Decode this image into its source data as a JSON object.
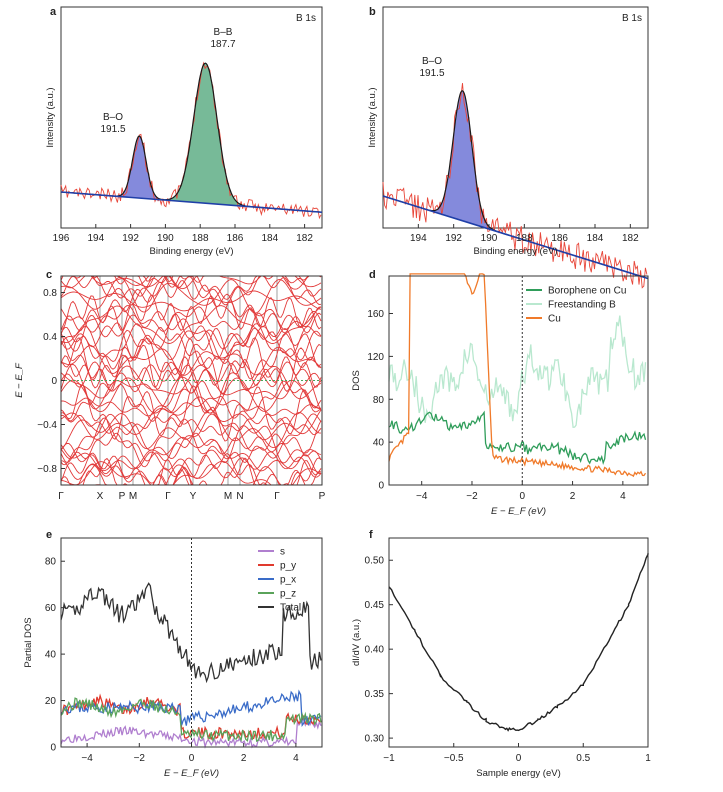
{
  "colors": {
    "raw": "#e8473a",
    "baseline": "#1f3fa8",
    "bo_fill": "#6f76d6",
    "bb_fill": "#5fae86",
    "envelope": "#1a1a1a",
    "borophene": "#2f9d5a",
    "freestanding": "#b9e8cf",
    "cu": "#f07a2a",
    "s_orb": "#b07fcf",
    "px": "#e03a2e",
    "py": "#3a6cc8",
    "pz": "#5aa35a",
    "total": "#333333",
    "band": "#e23a3a"
  },
  "chart_data": [
    {
      "panel": "a",
      "type": "line",
      "title": "B 1s",
      "xlabel": "Binding energy (eV)",
      "ylabel": "Intensity (a.u.)",
      "xlim": [
        196,
        181
      ],
      "xticks": [
        196,
        194,
        192,
        190,
        188,
        186,
        184,
        182
      ],
      "peaks": [
        {
          "name": "B–O",
          "position": 191.5,
          "fill": "bo_fill"
        },
        {
          "name": "B–B",
          "position": 187.7,
          "fill": "bb_fill"
        }
      ],
      "annotations": [
        {
          "label": "B–O",
          "value": "191.5"
        },
        {
          "label": "B–B",
          "value": "187.7"
        }
      ]
    },
    {
      "panel": "b",
      "type": "line",
      "title": "B 1s",
      "xlabel": "Binding energy (eV)",
      "ylabel": "Intensity (a.u.)",
      "xlim": [
        196,
        181
      ],
      "xticks": [
        194,
        192,
        190,
        188,
        186,
        184,
        182
      ],
      "peaks": [
        {
          "name": "B–O",
          "position": 191.5,
          "fill": "bo_fill"
        }
      ],
      "annotations": [
        {
          "label": "B–O",
          "value": "191.5"
        }
      ]
    },
    {
      "panel": "c",
      "type": "line",
      "ylabel": "E − E_F",
      "ylim": [
        -0.95,
        0.95
      ],
      "yticks": [
        "0.8",
        "0.4",
        "0",
        "−0.4",
        "−0.8"
      ],
      "ytick_values": [
        0.8,
        0.4,
        0,
        -0.4,
        -0.8
      ],
      "kpoints": [
        "Γ",
        "X",
        "P",
        "M",
        "Γ",
        "Y",
        "M",
        "N",
        "Γ",
        "P"
      ]
    },
    {
      "panel": "d",
      "type": "line",
      "xlabel": "E − E_F (eV)",
      "ylabel": "DOS",
      "xlim": [
        -5.3,
        5.0
      ],
      "ylim": [
        0,
        195
      ],
      "xticks": [
        "−4",
        "−2",
        "0",
        "2",
        "4"
      ],
      "xtick_values": [
        -4,
        -2,
        0,
        2,
        4
      ],
      "yticks": [
        "0",
        "40",
        "80",
        "120",
        "160"
      ],
      "ytick_values": [
        0,
        40,
        80,
        120,
        160
      ],
      "series": [
        {
          "name": "Borophene on Cu",
          "color": "borophene"
        },
        {
          "name": "Freestanding B",
          "color": "freestanding"
        },
        {
          "name": "Cu",
          "color": "cu"
        }
      ]
    },
    {
      "panel": "e",
      "type": "line",
      "xlabel": "E − E_F (eV)",
      "ylabel": "Partial DOS",
      "xlim": [
        -5.0,
        5.0
      ],
      "ylim": [
        0,
        90
      ],
      "xticks": [
        "−4",
        "−2",
        "0",
        "2",
        "4"
      ],
      "xtick_values": [
        -4,
        -2,
        0,
        2,
        4
      ],
      "yticks": [
        "0",
        "20",
        "40",
        "60",
        "80"
      ],
      "ytick_values": [
        0,
        20,
        40,
        60,
        80
      ],
      "series": [
        {
          "name": "s",
          "color": "s_orb"
        },
        {
          "name": "p_y",
          "color": "px"
        },
        {
          "name": "p_x",
          "color": "py"
        },
        {
          "name": "p_z",
          "color": "pz"
        },
        {
          "name": "Total",
          "color": "total"
        }
      ]
    },
    {
      "panel": "f",
      "type": "line",
      "xlabel": "Sample energy (eV)",
      "ylabel": "dI/dV (a.u.)",
      "xlim": [
        -1,
        1
      ],
      "ylim": [
        0.29,
        0.525
      ],
      "xticks": [
        "−1",
        "−0.5",
        "0",
        "0.5",
        "1"
      ],
      "xtick_values": [
        -1,
        -0.5,
        0,
        0.5,
        1
      ],
      "yticks": [
        "0.30",
        "0.35",
        "0.40",
        "0.45",
        "0.50"
      ],
      "ytick_values": [
        0.3,
        0.35,
        0.4,
        0.45,
        0.5
      ],
      "series": [
        {
          "name": "dI/dV",
          "x": [
            -1.0,
            -0.8,
            -0.6,
            -0.4,
            -0.25,
            -0.1,
            0.0,
            0.15,
            0.3,
            0.5,
            0.7,
            0.85,
            1.0
          ],
          "y": [
            0.472,
            0.42,
            0.37,
            0.34,
            0.32,
            0.31,
            0.31,
            0.32,
            0.335,
            0.36,
            0.41,
            0.45,
            0.508
          ]
        }
      ]
    }
  ],
  "panel_labels": [
    "a",
    "b",
    "c",
    "d",
    "e",
    "f"
  ]
}
